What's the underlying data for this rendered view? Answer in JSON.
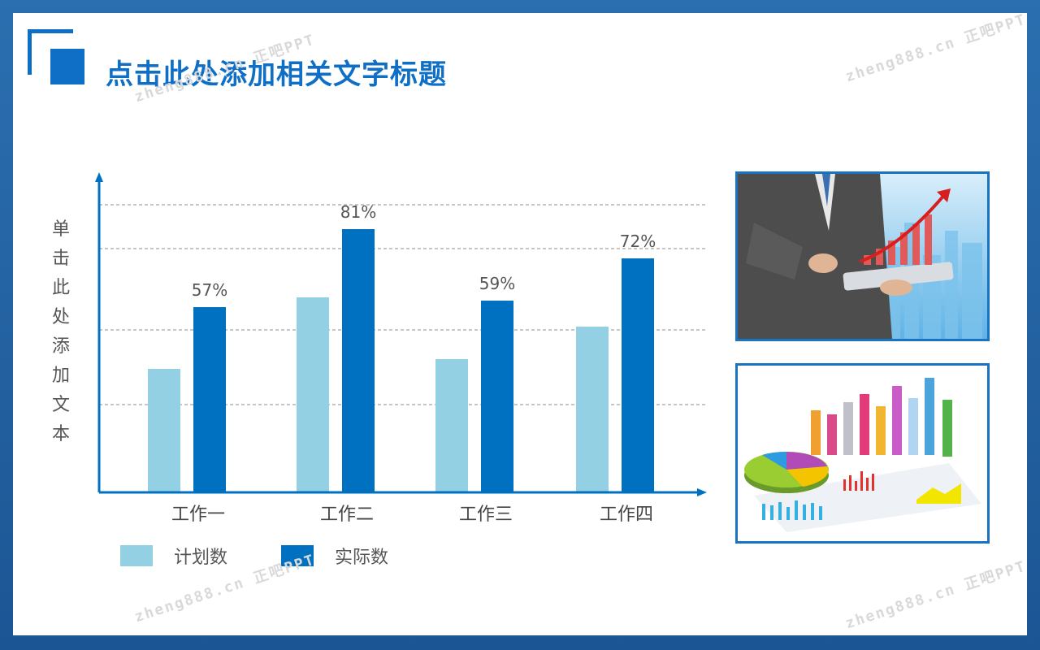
{
  "title": "点击此处添加相关文字标题",
  "watermark": "zheng888.cn 正吧PPT",
  "ylabel_text": "单击此处添加文本",
  "colors": {
    "accent": "#0f6fc6",
    "plan": "#93d0e4",
    "actual": "#0070c0",
    "grid": "#8c8c8c"
  },
  "legend": [
    {
      "label": "计划数",
      "color": "#93d0e4"
    },
    {
      "label": "实际数",
      "color": "#0070c0"
    }
  ],
  "images": [
    {
      "name": "business-man-tablet-growth-chart-icon"
    },
    {
      "name": "3d-colorful-statistics-chart-icon"
    }
  ],
  "chart_data": {
    "type": "bar",
    "categories": [
      "工作一",
      "工作二",
      "工作三",
      "工作四"
    ],
    "series": [
      {
        "name": "计划数",
        "values": [
          38,
          60,
          41,
          51
        ]
      },
      {
        "name": "实际数",
        "values": [
          57,
          81,
          59,
          72
        ]
      }
    ],
    "data_labels": [
      "57%",
      "81%",
      "59%",
      "72%"
    ],
    "ylabel": "单击此处添加文本",
    "ylim": [
      0,
      95
    ],
    "grid": true,
    "legend_position": "bottom-left"
  }
}
